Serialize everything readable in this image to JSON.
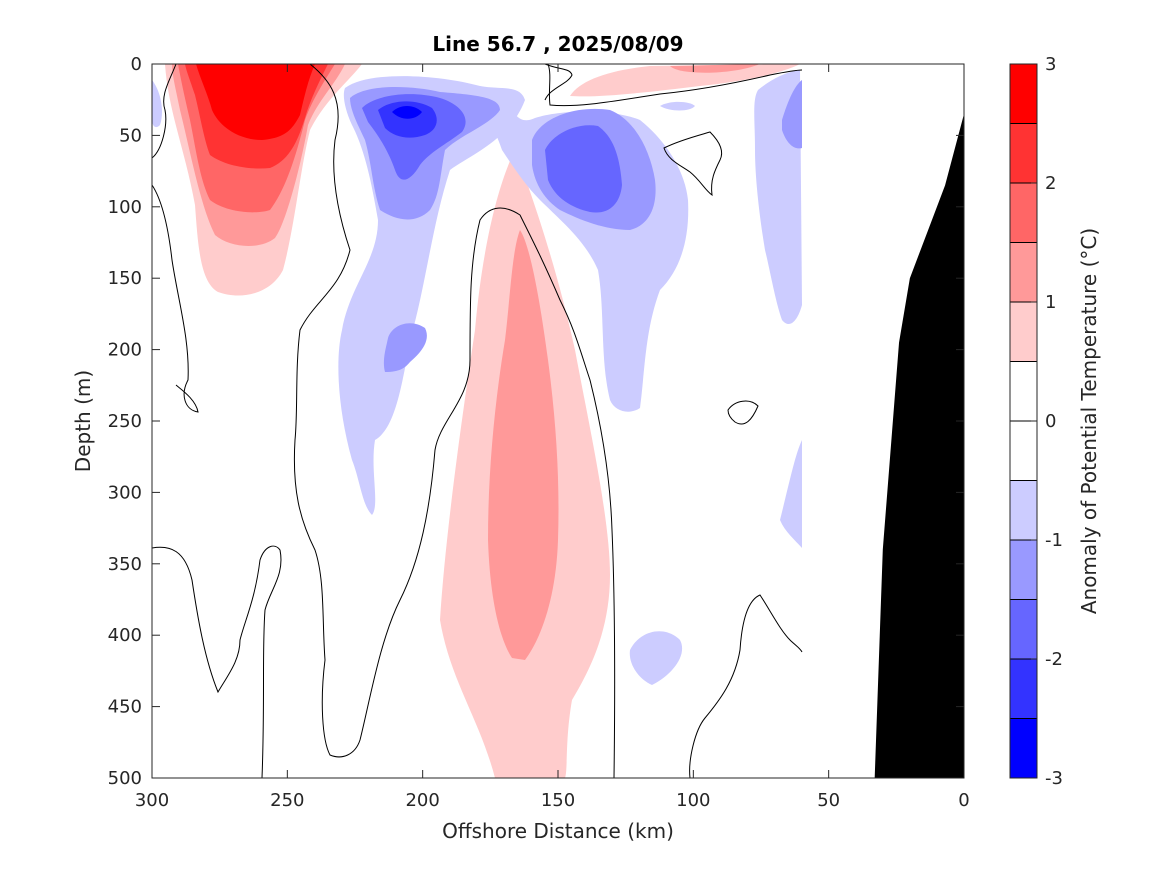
{
  "chart_data": {
    "type": "contour",
    "title": "Line 56.7 , 2025/08/09",
    "xlabel": "Offshore Distance (km)",
    "ylabel": "Depth (m)",
    "xlim": [
      300,
      0
    ],
    "ylim": [
      0,
      500
    ],
    "x_reversed": true,
    "y_reversed": true,
    "x_ticks": [
      300,
      250,
      200,
      150,
      100,
      50,
      0
    ],
    "y_ticks": [
      0,
      50,
      100,
      150,
      200,
      250,
      300,
      350,
      400,
      450,
      500
    ],
    "colorbar": {
      "label": "Anomaly of Potential Temperature (°C)",
      "range": [
        -3,
        3
      ],
      "ticks": [
        -3,
        -2,
        -1,
        0,
        1,
        2,
        3
      ],
      "levels": [
        -3,
        -2.5,
        -2,
        -1.5,
        -1,
        -0.5,
        0,
        0.5,
        1,
        1.5,
        2,
        2.5,
        3
      ],
      "colors": [
        "#0000ff",
        "#3333ff",
        "#6666ff",
        "#9999ff",
        "#ccccff",
        "#ffffff",
        "#ffffff",
        "#ffcccc",
        "#ff9999",
        "#ff6666",
        "#ff3333",
        "#ff0000"
      ]
    },
    "colors": {
      "bathymetry": "#000000",
      "zero_contour": "#000000"
    },
    "features": [
      {
        "name": "warm core",
        "level": 2.5,
        "center_km": 262,
        "center_depth_m": 30
      },
      {
        "name": "cold core",
        "level": -2.5,
        "center_km": 208,
        "center_depth_m": 38
      },
      {
        "name": "cold core",
        "level": -2.0,
        "center_km": 152,
        "center_depth_m": 80
      },
      {
        "name": "deep warm core",
        "level": 1.0,
        "center_km": 162,
        "center_depth_m": 330
      },
      {
        "name": "surface warm patch",
        "level": 0.5,
        "center_km": 100,
        "center_depth_m": 10
      }
    ],
    "data_coverage_km": [
      300,
      60
    ],
    "bathymetry": [
      [
        0,
        35
      ],
      [
        7,
        85
      ],
      [
        12,
        110
      ],
      [
        20,
        150
      ],
      [
        24,
        195
      ],
      [
        30,
        340
      ],
      [
        33,
        500
      ]
    ]
  }
}
